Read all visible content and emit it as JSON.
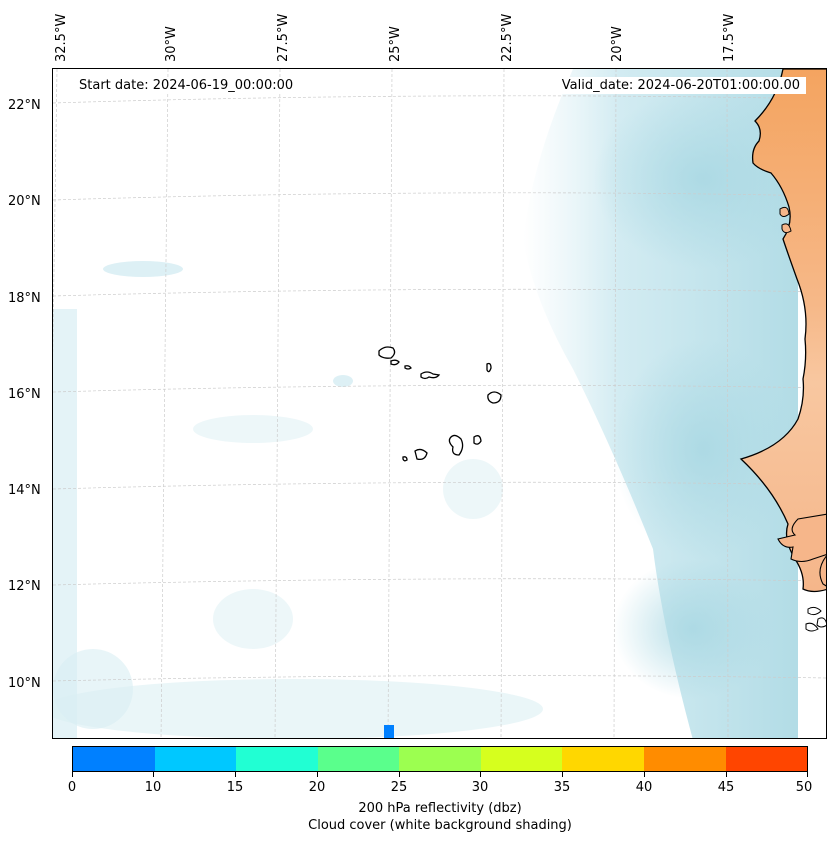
{
  "map": {
    "start_label": "Start date: 2024-06-19_00:00:00",
    "valid_label": "Valid_date: 2024-06-20T01:00:00.00",
    "lon_labels": [
      "32.5°W",
      "30°W",
      "27.5°W",
      "25°W",
      "22.5°W",
      "20°W",
      "17.5°W"
    ],
    "lat_labels": [
      "22°N",
      "20°N",
      "18°N",
      "16°N",
      "14°N",
      "12°N",
      "10°N"
    ],
    "colors": {
      "land": "#f4a460",
      "cloud": "#a9d8e3",
      "coast": "#000000"
    }
  },
  "colorbar": {
    "colors": [
      "#0080ff",
      "#00c8ff",
      "#21ffd3",
      "#5aff8c",
      "#9cff50",
      "#d6ff1e",
      "#ffd700",
      "#ff8c00",
      "#ff4500"
    ],
    "ticks": [
      "0",
      "10",
      "15",
      "20",
      "25",
      "30",
      "35",
      "40",
      "45",
      "50"
    ],
    "title_line1": "200 hPa reflectivity (dbz)",
    "title_line2": "Cloud cover (white background shading)"
  }
}
